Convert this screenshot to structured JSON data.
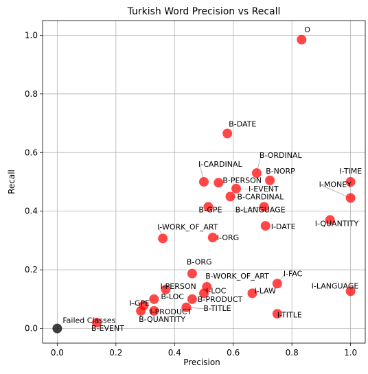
{
  "chart_data": {
    "type": "scatter",
    "title": "Turkish Word Precision vs Recall",
    "xlabel": "Precision",
    "ylabel": "Recall",
    "xlim": [
      -0.05,
      1.05
    ],
    "ylim": [
      -0.05,
      1.05
    ],
    "xticks": [
      "0.0",
      "0.2",
      "0.4",
      "0.6",
      "0.8",
      "1.0"
    ],
    "yticks": [
      "0.0",
      "0.2",
      "0.4",
      "0.6",
      "0.8",
      "1.0"
    ],
    "grid": true,
    "colors": {
      "points": "#ff0000",
      "failed": "#000000"
    },
    "points": [
      {
        "label": "O",
        "x": 0.833,
        "y": 0.985
      },
      {
        "label": "B-DATE",
        "x": 0.58,
        "y": 0.665
      },
      {
        "label": "B-ORDINAL",
        "x": 0.68,
        "y": 0.53
      },
      {
        "label": "I-CARDINAL",
        "x": 0.5,
        "y": 0.5
      },
      {
        "label": "B-NORP",
        "x": 0.725,
        "y": 0.505
      },
      {
        "label": "B-PERSON",
        "x": 0.55,
        "y": 0.497
      },
      {
        "label": "I-EVENT",
        "x": 0.61,
        "y": 0.477
      },
      {
        "label": "I-TIME",
        "x": 1.0,
        "y": 0.5
      },
      {
        "label": "B-CARDINAL",
        "x": 0.59,
        "y": 0.45
      },
      {
        "label": "I-MONEY",
        "x": 1.0,
        "y": 0.445
      },
      {
        "label": "B-GPE",
        "x": 0.515,
        "y": 0.415
      },
      {
        "label": "B-LANGUAGE",
        "x": 0.705,
        "y": 0.415
      },
      {
        "label": "I-QUANTITY",
        "x": 0.93,
        "y": 0.37
      },
      {
        "label": "I-DATE",
        "x": 0.71,
        "y": 0.35
      },
      {
        "label": "I-WORK_OF_ART",
        "x": 0.36,
        "y": 0.307
      },
      {
        "label": "I-ORG",
        "x": 0.53,
        "y": 0.31
      },
      {
        "label": "B-ORG",
        "x": 0.46,
        "y": 0.187
      },
      {
        "label": "B-WORK_OF_ART",
        "x": 0.51,
        "y": 0.142
      },
      {
        "label": "I-FAC",
        "x": 0.75,
        "y": 0.153
      },
      {
        "label": "I-PERSON",
        "x": 0.37,
        "y": 0.133
      },
      {
        "label": "I-LOC",
        "x": 0.5,
        "y": 0.12
      },
      {
        "label": "I-LAW",
        "x": 0.665,
        "y": 0.12
      },
      {
        "label": "I-LANGUAGE",
        "x": 1.0,
        "y": 0.127
      },
      {
        "label": "B-LOC",
        "x": 0.33,
        "y": 0.1
      },
      {
        "label": "B-PRODUCT",
        "x": 0.46,
        "y": 0.1
      },
      {
        "label": "I-GPE",
        "x": 0.295,
        "y": 0.078
      },
      {
        "label": "B-TITLE",
        "x": 0.44,
        "y": 0.072
      },
      {
        "label": "I-PRODUCT",
        "x": 0.33,
        "y": 0.06
      },
      {
        "label": "B-QUANTITY",
        "x": 0.285,
        "y": 0.06
      },
      {
        "label": "I-TITLE",
        "x": 0.75,
        "y": 0.05
      },
      {
        "label": "B-EVENT",
        "x": 0.135,
        "y": 0.02
      },
      {
        "label": "Failed Classes",
        "x": 0.0,
        "y": 0.0,
        "failed": true
      }
    ]
  }
}
